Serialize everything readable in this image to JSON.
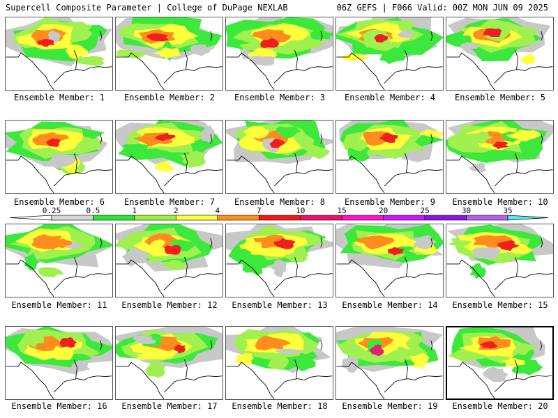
{
  "header": {
    "left": "Supercell Composite Parameter | College of DuPage NEXLAB",
    "right": "06Z GEFS | F066 Valid: 00Z MON JUN 09 2025"
  },
  "legend": {
    "labels": [
      "0.25",
      "0.5",
      "1",
      "2",
      "4",
      "7",
      "10",
      "15",
      "20",
      "25",
      "30",
      "35"
    ],
    "colors": [
      "#d6d6d6",
      "#2ee62e",
      "#9ef03c",
      "#ffff3c",
      "#ff9020",
      "#f01818",
      "#e6146e",
      "#ff14c8",
      "#d214ff",
      "#8c14dc",
      "#b464e6",
      "#50f0f0"
    ]
  },
  "map_colors": {
    "gray": "#c8c8c8",
    "green": "#3ce83c",
    "lightgreen": "#a0f050",
    "yellow": "#ffff3c",
    "orange": "#ff8c1e",
    "red": "#f01e1e",
    "magenta": "#e61e78",
    "coast": "#000000"
  },
  "members": [
    {
      "label": "Ensemble Member: 1",
      "intensity": "red"
    },
    {
      "label": "Ensemble Member: 2",
      "intensity": "red"
    },
    {
      "label": "Ensemble Member: 3",
      "intensity": "red"
    },
    {
      "label": "Ensemble Member: 4",
      "intensity": "red"
    },
    {
      "label": "Ensemble Member: 5",
      "intensity": "red"
    },
    {
      "label": "Ensemble Member: 6",
      "intensity": "red"
    },
    {
      "label": "Ensemble Member: 7",
      "intensity": "red"
    },
    {
      "label": "Ensemble Member: 8",
      "intensity": "red"
    },
    {
      "label": "Ensemble Member: 9",
      "intensity": "red"
    },
    {
      "label": "Ensemble Member: 10",
      "intensity": "red"
    },
    {
      "label": "Ensemble Member: 11",
      "intensity": "orange"
    },
    {
      "label": "Ensemble Member: 12",
      "intensity": "red"
    },
    {
      "label": "Ensemble Member: 13",
      "intensity": "red"
    },
    {
      "label": "Ensemble Member: 14",
      "intensity": "red"
    },
    {
      "label": "Ensemble Member: 15",
      "intensity": "red"
    },
    {
      "label": "Ensemble Member: 16",
      "intensity": "red"
    },
    {
      "label": "Ensemble Member: 17",
      "intensity": "red"
    },
    {
      "label": "Ensemble Member: 18",
      "intensity": "orange"
    },
    {
      "label": "Ensemble Member: 19",
      "intensity": "magenta"
    },
    {
      "label": "Ensemble Member: 20",
      "intensity": "red",
      "selected": true
    }
  ]
}
